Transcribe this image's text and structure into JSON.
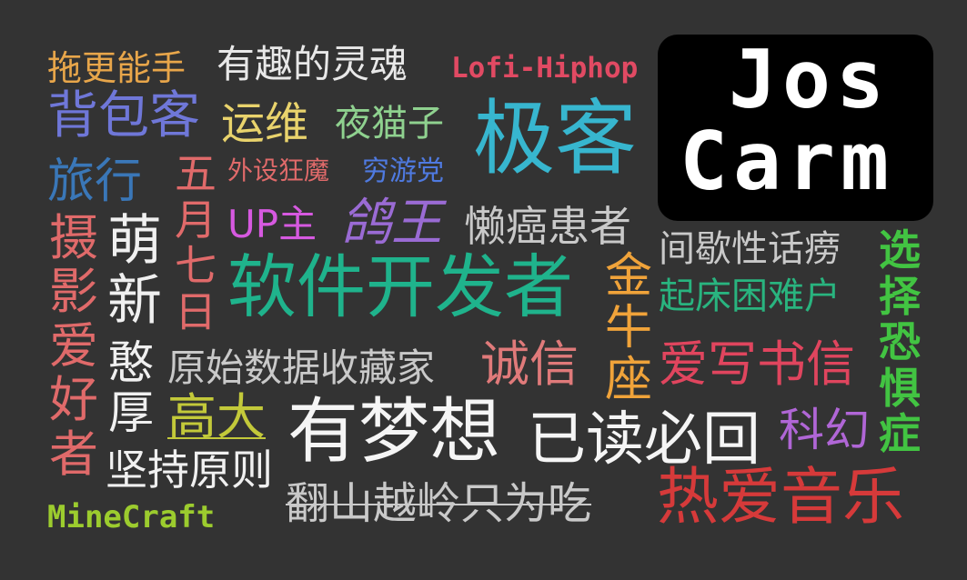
{
  "logo": {
    "line1": "Jos",
    "line2": "Carm"
  },
  "tags": {
    "t01": "拖更能手",
    "t02": "有趣的灵魂",
    "t03": "Lofi-Hiphop",
    "t04": "背包客",
    "t05": "运维",
    "t06": "夜猫子",
    "t07": "极客",
    "t08": "旅行",
    "t09": "五月七日",
    "t10": "外设狂魔",
    "t11": "穷游党",
    "t12": "摄影爱好者",
    "t13": "萌新",
    "t14": "UP主",
    "t15": "鸽王",
    "t16": "懒癌患者",
    "t17": "间歇性话痨",
    "t18": "选择恐惧症",
    "t19": "软件开发者",
    "t20": "金牛座",
    "t21": "起床困难户",
    "t22": "憨厚",
    "t23": "原始数据收藏家",
    "t24": "诚信",
    "t25": "爱写书信",
    "t26": "高大",
    "t27": "有梦想",
    "t28": "已读必回",
    "t29": "科幻",
    "t30": "坚持原则",
    "t31": "MineCraft",
    "t32": "翻山越岭只为吃",
    "t33": "热爱音乐"
  },
  "colors": {
    "background": "#333333",
    "logo_bg": "#000000",
    "logo_text": "#ffffff"
  }
}
